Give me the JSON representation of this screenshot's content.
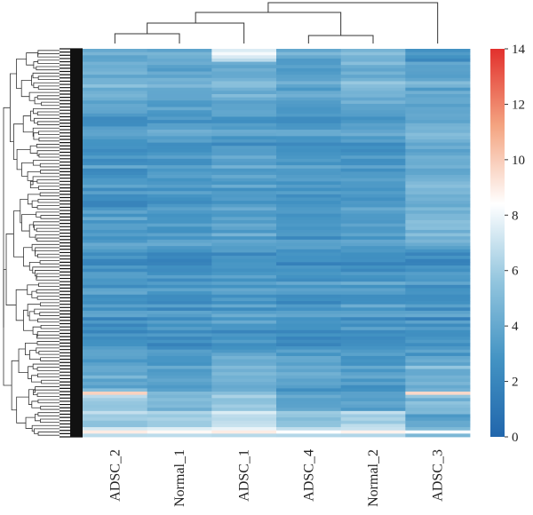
{
  "chart_data": {
    "type": "heatmap",
    "columns": [
      "ADSC_2",
      "Normal_1",
      "ADSC_1",
      "ADSC_4",
      "Normal_2",
      "ADSC_3"
    ],
    "colorbar": {
      "min": 0,
      "max": 14,
      "ticks": [
        "0",
        "2",
        "4",
        "6",
        "8",
        "10",
        "12",
        "14"
      ],
      "colors": [
        "#2166ac",
        "#4393c3",
        "#92c5de",
        "#ffffff",
        "#f4a582",
        "#e2302d"
      ]
    },
    "row_count": 120,
    "row_dendrogram": true,
    "column_dendrogram": true,
    "row_profiles": [
      {
        "from": 0,
        "to": 4,
        "values": [
          4.0,
          4.2,
          7.8,
          4.0,
          4.6,
          3.2
        ]
      },
      {
        "from": 4,
        "to": 20,
        "values": [
          4.6,
          4.2,
          4.6,
          3.8,
          4.8,
          4.2
        ]
      },
      {
        "from": 20,
        "to": 50,
        "values": [
          3.0,
          3.2,
          3.4,
          3.1,
          3.3,
          4.4
        ]
      },
      {
        "from": 50,
        "to": 60,
        "values": [
          3.6,
          3.4,
          4.0,
          3.4,
          3.6,
          5.2
        ]
      },
      {
        "from": 60,
        "to": 95,
        "values": [
          3.0,
          2.9,
          3.2,
          3.0,
          3.1,
          2.9
        ]
      },
      {
        "from": 95,
        "to": 105,
        "values": [
          3.8,
          3.4,
          4.4,
          4.2,
          3.2,
          4.6
        ]
      },
      {
        "from": 105,
        "to": 112,
        "values": [
          5.4,
          4.4,
          5.2,
          3.2,
          3.4,
          4.4
        ]
      },
      {
        "from": 112,
        "to": 120,
        "values": [
          6.2,
          6.4,
          6.8,
          5.8,
          6.6,
          4.2
        ]
      }
    ],
    "highlight_rows": [
      {
        "row": 106,
        "values": [
          9.8,
          5.0,
          5.2,
          3.4,
          3.6,
          9.6
        ]
      },
      {
        "row": 118,
        "values": [
          9.0,
          8.6,
          9.0,
          8.4,
          8.8,
          8.2
        ]
      }
    ]
  }
}
